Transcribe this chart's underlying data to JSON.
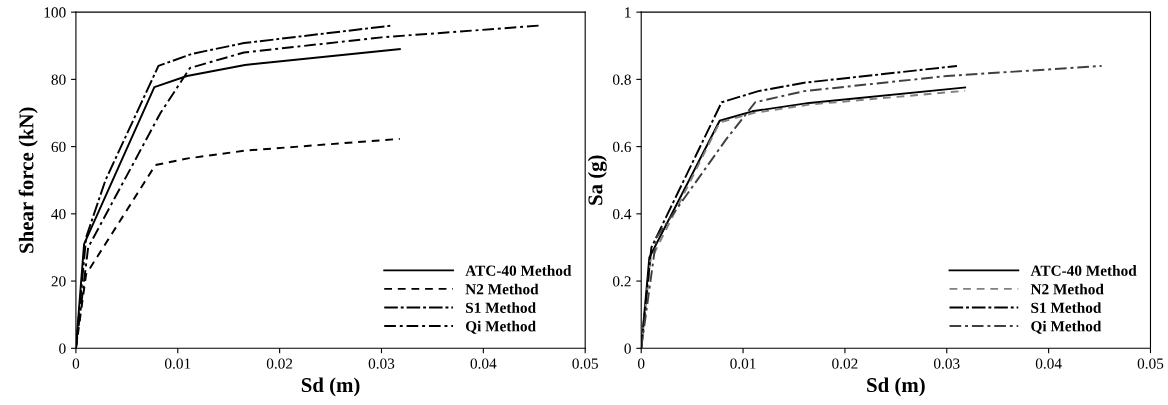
{
  "chart_data": [
    {
      "type": "line",
      "xlabel": "Sd (m)",
      "ylabel": "Shear force (kN)",
      "xlim": [
        0,
        0.05
      ],
      "ylim": [
        0,
        100
      ],
      "xticks": [
        0,
        0.01,
        0.02,
        0.03,
        0.04,
        0.05
      ],
      "yticks": [
        0,
        20,
        40,
        60,
        80,
        100
      ],
      "grid": false,
      "legend": "bottom right",
      "series": [
        {
          "name": "ATC-40 Method",
          "color": "#000000",
          "line_style": "solid",
          "x": [
            0,
            0.0008,
            0.0077,
            0.0109,
            0.0166,
            0.0318
          ],
          "values": [
            0,
            31,
            77.7,
            81,
            84.3,
            89
          ]
        },
        {
          "name": "N2 Method",
          "color": "#000000",
          "line_style": "dashed",
          "x": [
            0,
            0.001,
            0.0078,
            0.011,
            0.0166,
            0.0318
          ],
          "values": [
            0,
            22,
            54.5,
            56.5,
            58.8,
            62.3
          ]
        },
        {
          "name": "S1 Method",
          "color": "#000000",
          "line_style": "dashdot",
          "x": [
            0,
            0.001,
            0.0029,
            0.0081,
            0.0114,
            0.0165,
            0.031
          ],
          "values": [
            0,
            33,
            50,
            84,
            87.6,
            90.8,
            96
          ]
        },
        {
          "name": "Qi Method",
          "color": "#000000",
          "line_style": "longdashdot",
          "x": [
            0,
            0.0012,
            0.0083,
            0.0112,
            0.0165,
            0.03,
            0.0455
          ],
          "values": [
            0,
            30,
            70,
            83.4,
            88,
            92.5,
            96
          ]
        }
      ]
    },
    {
      "type": "line",
      "xlabel": "Sd (m)",
      "ylabel": "Sa (g)",
      "xlim": [
        0,
        0.05
      ],
      "ylim": [
        0,
        1
      ],
      "xticks": [
        0,
        0.01,
        0.02,
        0.03,
        0.04,
        0.05
      ],
      "yticks": [
        0,
        0.2,
        0.4,
        0.6,
        0.8,
        1
      ],
      "grid": false,
      "legend": "bottom right",
      "series": [
        {
          "name": "ATC-40 Method",
          "color": "#000000",
          "line_style": "solid",
          "x": [
            0,
            0.0008,
            0.0077,
            0.0109,
            0.0165,
            0.0318
          ],
          "values": [
            0,
            0.27,
            0.677,
            0.705,
            0.73,
            0.776
          ]
        },
        {
          "name": "N2 Method",
          "color": "#808080",
          "line_style": "dashed",
          "x": [
            0,
            0.0009,
            0.0077,
            0.011,
            0.0165,
            0.0318
          ],
          "values": [
            0,
            0.26,
            0.672,
            0.7,
            0.725,
            0.766
          ]
        },
        {
          "name": "S1 Method",
          "color": "#000000",
          "line_style": "dashdot",
          "x": [
            0,
            0.001,
            0.0079,
            0.0115,
            0.016,
            0.031
          ],
          "values": [
            0,
            0.3,
            0.732,
            0.765,
            0.79,
            0.84
          ]
        },
        {
          "name": "Qi Method",
          "color": "#404040",
          "line_style": "longdashdot",
          "x": [
            0,
            0.0015,
            0.0083,
            0.0112,
            0.016,
            0.03,
            0.0452
          ],
          "values": [
            0,
            0.33,
            0.62,
            0.732,
            0.765,
            0.81,
            0.84
          ]
        }
      ]
    }
  ]
}
